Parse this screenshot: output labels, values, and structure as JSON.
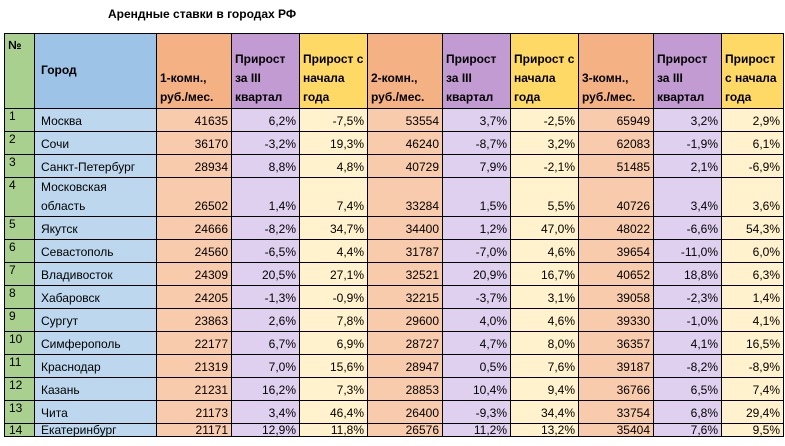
{
  "title": "Арендные ставки в городах РФ",
  "colors": {
    "index": "#a9d08e",
    "city": "#bdd7ee",
    "rent": "#f8cbad",
    "quarter_growth": "#e0d0f0",
    "year_growth": "#fff2cc"
  },
  "headers": {
    "num": "№",
    "city": "Город",
    "rent1": "1-комн., руб./мес.",
    "q1": "Прирост за III квартал",
    "y1": "Прирост с начала года",
    "rent2": "2-комн., руб./мес.",
    "q2": "Прирост за III квартал",
    "y2": "Прирост с начала года",
    "rent3": "3-комн., руб./мес.",
    "q3": "Прирост за III квартал",
    "y3": "Прирост с начала года"
  },
  "rows": [
    {
      "n": "1",
      "city": "Москва",
      "r1": "41635",
      "q1": "6,2%",
      "y1": "-7,5%",
      "r2": "53554",
      "q2": "3,7%",
      "y2": "-2,5%",
      "r3": "65949",
      "q3": "3,2%",
      "y3": "2,9%"
    },
    {
      "n": "2",
      "city": "Сочи",
      "r1": "36170",
      "q1": "-3,2%",
      "y1": "19,3%",
      "r2": "46240",
      "q2": "-8,7%",
      "y2": "3,2%",
      "r3": "62083",
      "q3": "-1,9%",
      "y3": "6,1%"
    },
    {
      "n": "3",
      "city": "Санкт-Петербург",
      "r1": "28934",
      "q1": "8,8%",
      "y1": "4,8%",
      "r2": "40729",
      "q2": "7,9%",
      "y2": "-2,1%",
      "r3": "51485",
      "q3": "2,1%",
      "y3": "-6,9%"
    },
    {
      "n": "4",
      "city": "Московская область",
      "r1": "26502",
      "q1": "1,4%",
      "y1": "7,4%",
      "r2": "33284",
      "q2": "1,5%",
      "y2": "5,5%",
      "r3": "40726",
      "q3": "3,4%",
      "y3": "3,6%"
    },
    {
      "n": "5",
      "city": "Якутск",
      "r1": "24666",
      "q1": "-8,2%",
      "y1": "34,7%",
      "r2": "34400",
      "q2": "1,2%",
      "y2": "47,0%",
      "r3": "48022",
      "q3": "-6,6%",
      "y3": "54,3%"
    },
    {
      "n": "6",
      "city": "Севастополь",
      "r1": "24560",
      "q1": "-6,5%",
      "y1": "4,4%",
      "r2": "31787",
      "q2": "-7,0%",
      "y2": "4,6%",
      "r3": "39654",
      "q3": "-11,0%",
      "y3": "6,0%"
    },
    {
      "n": "7",
      "city": "Владивосток",
      "r1": "24309",
      "q1": "20,5%",
      "y1": "27,1%",
      "r2": "32521",
      "q2": "20,9%",
      "y2": "16,7%",
      "r3": "40652",
      "q3": "18,8%",
      "y3": "6,3%"
    },
    {
      "n": "8",
      "city": "Хабаровск",
      "r1": "24205",
      "q1": "-1,3%",
      "y1": "-0,9%",
      "r2": "32215",
      "q2": "-3,7%",
      "y2": "3,1%",
      "r3": "39058",
      "q3": "-2,3%",
      "y3": "1,4%"
    },
    {
      "n": "9",
      "city": "Сургут",
      "r1": "23863",
      "q1": "2,6%",
      "y1": "7,8%",
      "r2": "29600",
      "q2": "4,0%",
      "y2": "4,6%",
      "r3": "39330",
      "q3": "-1,0%",
      "y3": "4,1%"
    },
    {
      "n": "10",
      "city": "Симферополь",
      "r1": "22177",
      "q1": "6,7%",
      "y1": "6,9%",
      "r2": "28727",
      "q2": "4,7%",
      "y2": "8,0%",
      "r3": "36357",
      "q3": "4,1%",
      "y3": "16,5%"
    },
    {
      "n": "11",
      "city": "Краснодар",
      "r1": "21319",
      "q1": "7,0%",
      "y1": "15,6%",
      "r2": "28947",
      "q2": "0,5%",
      "y2": "7,6%",
      "r3": "39187",
      "q3": "-8,2%",
      "y3": "-8,9%"
    },
    {
      "n": "12",
      "city": "Казань",
      "r1": "21231",
      "q1": "16,2%",
      "y1": "7,3%",
      "r2": "28853",
      "q2": "10,4%",
      "y2": "9,4%",
      "r3": "36766",
      "q3": "6,5%",
      "y3": "7,4%"
    },
    {
      "n": "13",
      "city": "Чита",
      "r1": "21173",
      "q1": "3,4%",
      "y1": "46,4%",
      "r2": "26400",
      "q2": "-9,3%",
      "y2": "34,4%",
      "r3": "33754",
      "q3": "6,8%",
      "y3": "29,4%"
    },
    {
      "n": "14",
      "city": "Екатеринбург",
      "r1": "21171",
      "q1": "12,9%",
      "y1": "11,8%",
      "r2": "26576",
      "q2": "11,2%",
      "y2": "13,2%",
      "r3": "35404",
      "q3": "7,6%",
      "y3": "9,5%"
    }
  ]
}
